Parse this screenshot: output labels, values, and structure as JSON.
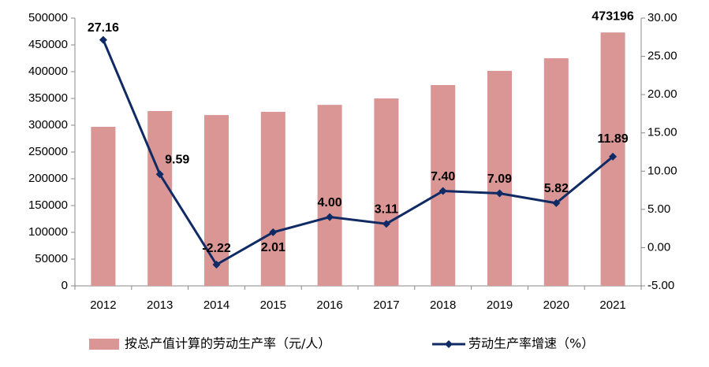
{
  "chart_data": {
    "type": "combo",
    "categories": [
      "2012",
      "2013",
      "2014",
      "2015",
      "2016",
      "2017",
      "2018",
      "2019",
      "2020",
      "2021"
    ],
    "series": [
      {
        "name": "按总产值计算的劳动生产率（元/人）",
        "type": "bar",
        "color": "#d99694",
        "values": [
          297000,
          326500,
          319000,
          325000,
          338000,
          350000,
          375000,
          401500,
          425000,
          473196
        ],
        "value_labels": [
          null,
          null,
          null,
          null,
          null,
          null,
          null,
          null,
          null,
          "473196"
        ]
      },
      {
        "name": "劳动生产率增速（%）",
        "type": "line",
        "axis": "y2",
        "color": "#0f2a64",
        "values": [
          27.16,
          9.59,
          -2.22,
          2.01,
          4.0,
          3.11,
          7.4,
          7.09,
          5.82,
          11.89
        ],
        "value_labels": [
          "27.16",
          "9.59",
          "-2.22",
          "2.01",
          "4.00",
          "3.11",
          "7.40",
          "7.09",
          "5.82",
          "11.89"
        ]
      }
    ],
    "ylim": [
      0,
      500000
    ],
    "yticks": [
      0,
      50000,
      100000,
      150000,
      200000,
      250000,
      300000,
      350000,
      400000,
      450000,
      500000
    ],
    "y2lim": [
      -5,
      30
    ],
    "y2ticks": [
      {
        "value": -5,
        "label": "-5.00"
      },
      {
        "value": 0,
        "label": "0.00"
      },
      {
        "value": 5,
        "label": "5.00"
      },
      {
        "value": 10,
        "label": "10.00"
      },
      {
        "value": 15,
        "label": "15.00"
      },
      {
        "value": 20,
        "label": "20.00"
      },
      {
        "value": 25,
        "label": "25.00"
      },
      {
        "value": 30,
        "label": "30.00"
      }
    ],
    "legend": "bottom"
  }
}
